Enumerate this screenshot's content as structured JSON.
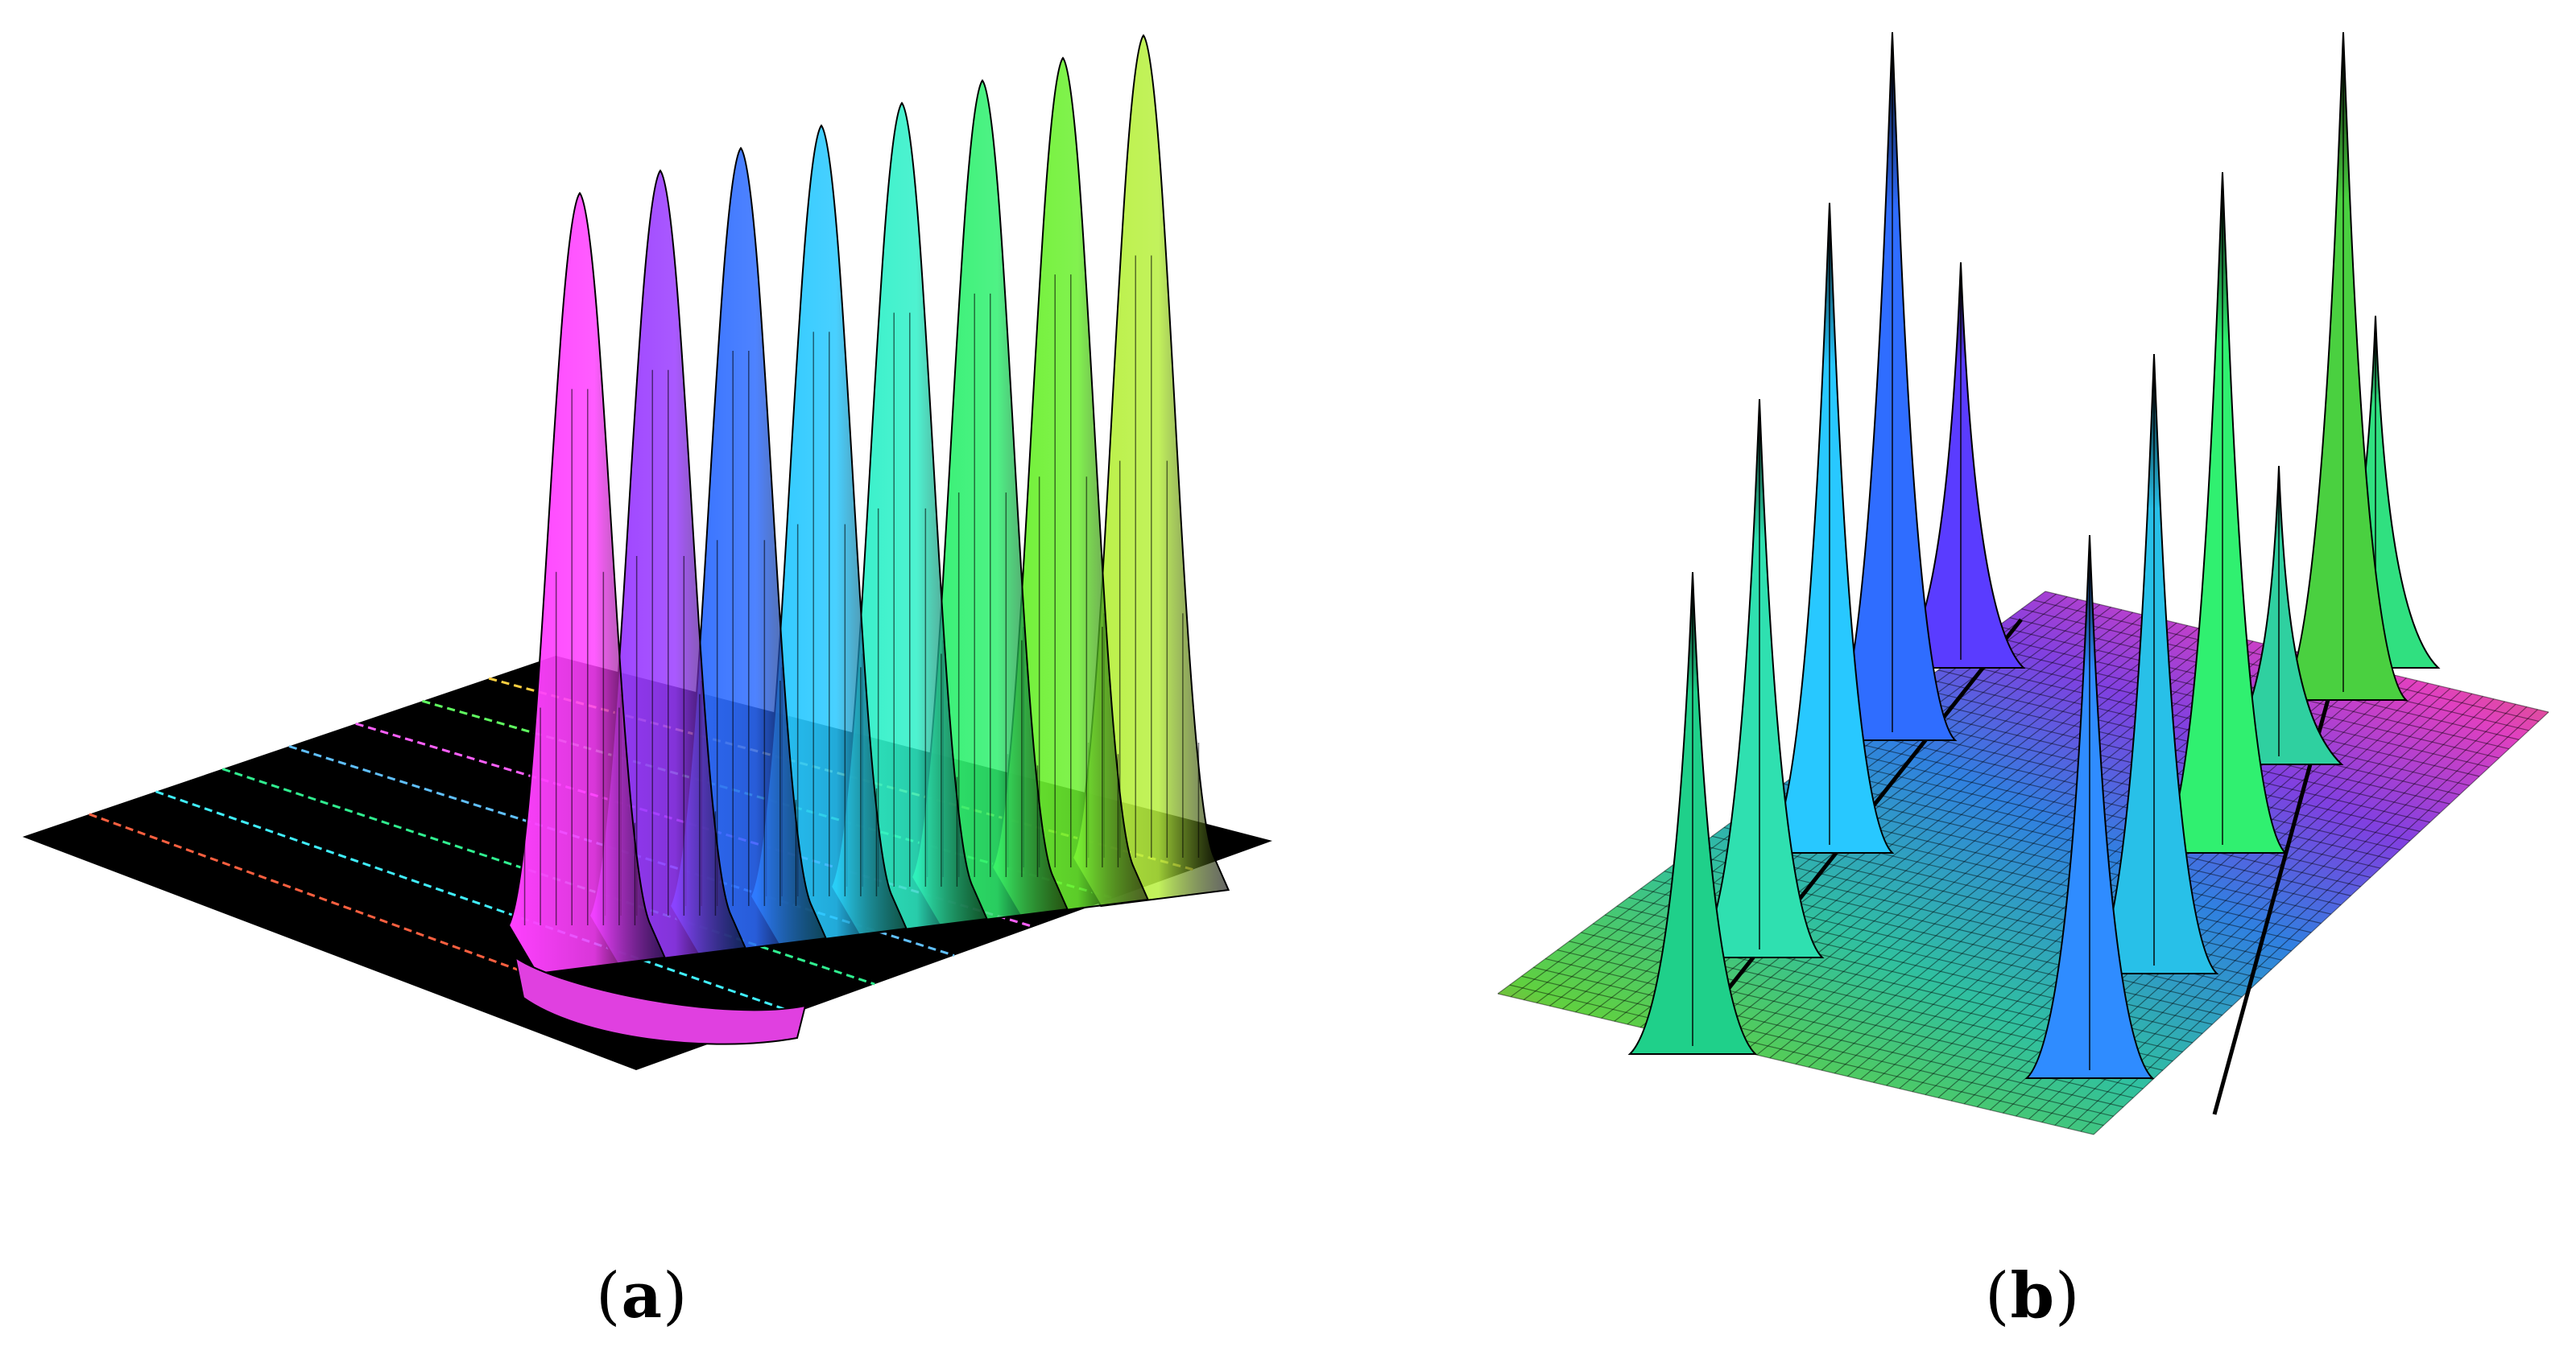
{
  "chart_data": [
    {
      "type": "surface3d",
      "panel_label": "a",
      "title": "",
      "xlabel": "",
      "ylabel": "",
      "zlabel": "",
      "grid": false,
      "colormap": "hsv",
      "base_color": "#000000",
      "peak_count": 8,
      "peak_heights": [
        0.78,
        0.82,
        0.86,
        0.9,
        0.94,
        0.98,
        1.0,
        1.0
      ],
      "series_colors": [
        "#ff40ff",
        "#9a3cff",
        "#2f6dff",
        "#28c8ff",
        "#2ff0c8",
        "#30f070",
        "#6cf030",
        "#b8f040"
      ]
    },
    {
      "type": "surface3d",
      "panel_label": "b",
      "title": "",
      "xlabel": "",
      "ylabel": "",
      "zlabel": "",
      "grid": true,
      "colormap": "hsv",
      "peak_count": 11,
      "peak_heights": [
        0.62,
        0.72,
        0.84,
        1.0,
        0.52,
        0.7,
        0.8,
        0.88,
        0.38,
        0.9,
        0.45
      ],
      "series_colors": [
        "#1fd08a",
        "#2fe0b0",
        "#28c8ff",
        "#2f6dff",
        "#5a3cff",
        "#2f8cff",
        "#28c0e8",
        "#30f070",
        "#2fd0a0",
        "#4ad040",
        "#30e080"
      ]
    }
  ],
  "captions": {
    "a": {
      "open": "(",
      "letter": "a",
      "close": ")"
    },
    "b": {
      "open": "(",
      "letter": "b",
      "close": ")"
    }
  }
}
